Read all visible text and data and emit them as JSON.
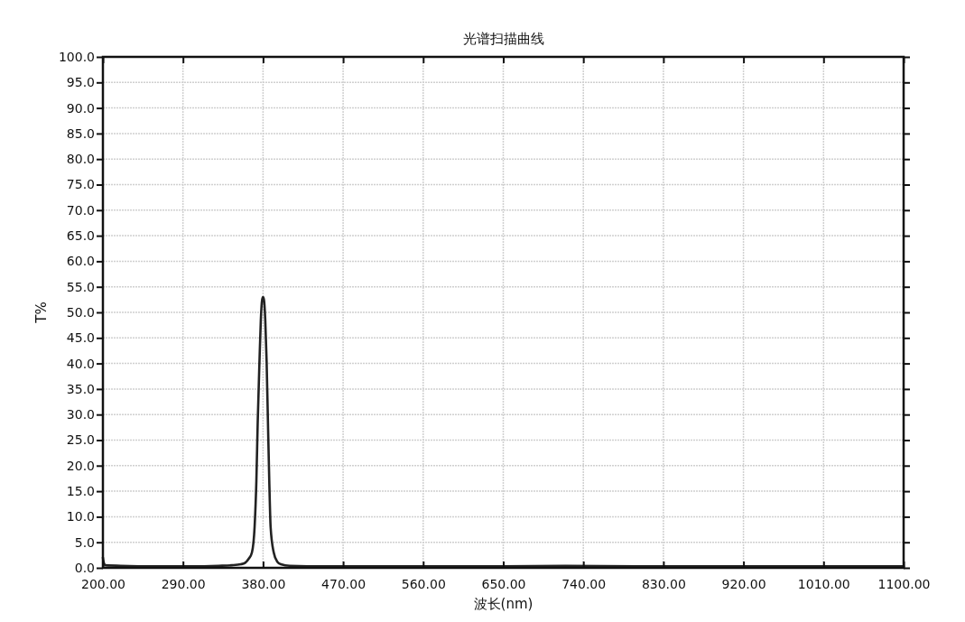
{
  "chart_data": {
    "type": "line",
    "title": "光谱扫描曲线",
    "xlabel": "波长(nm)",
    "ylabel": "T%",
    "xlim": [
      200,
      1100
    ],
    "ylim": [
      0,
      100
    ],
    "xticks": [
      {
        "value": 200,
        "label": "200.00"
      },
      {
        "value": 290,
        "label": "290.00"
      },
      {
        "value": 380,
        "label": "380.00"
      },
      {
        "value": 470,
        "label": "470.00"
      },
      {
        "value": 560,
        "label": "560.00"
      },
      {
        "value": 650,
        "label": "650.00"
      },
      {
        "value": 740,
        "label": "740.00"
      },
      {
        "value": 830,
        "label": "830.00"
      },
      {
        "value": 920,
        "label": "920.00"
      },
      {
        "value": 1010,
        "label": "1010.00"
      },
      {
        "value": 1100,
        "label": "1100.00"
      }
    ],
    "yticks": [
      {
        "value": 0,
        "label": "0.0"
      },
      {
        "value": 5,
        "label": "5.0"
      },
      {
        "value": 10,
        "label": "10.0"
      },
      {
        "value": 15,
        "label": "15.0"
      },
      {
        "value": 20,
        "label": "20.0"
      },
      {
        "value": 25,
        "label": "25.0"
      },
      {
        "value": 30,
        "label": "30.0"
      },
      {
        "value": 35,
        "label": "35.0"
      },
      {
        "value": 40,
        "label": "40.0"
      },
      {
        "value": 45,
        "label": "45.0"
      },
      {
        "value": 50,
        "label": "50.0"
      },
      {
        "value": 55,
        "label": "55.0"
      },
      {
        "value": 60,
        "label": "60.0"
      },
      {
        "value": 65,
        "label": "65.0"
      },
      {
        "value": 70,
        "label": "70.0"
      },
      {
        "value": 75,
        "label": "75.0"
      },
      {
        "value": 80,
        "label": "80.0"
      },
      {
        "value": 85,
        "label": "85.0"
      },
      {
        "value": 90,
        "label": "90.0"
      },
      {
        "value": 95,
        "label": "95.0"
      },
      {
        "value": 100,
        "label": "100.0"
      }
    ],
    "grid": true,
    "series": [
      {
        "color": "#222222",
        "x": [
          200,
          201,
          203,
          220,
          260,
          300,
          330,
          345,
          355,
          360,
          364,
          367.5,
          370.5,
          372.5,
          374,
          376,
          377.5,
          379,
          380,
          381,
          382.5,
          384,
          385.5,
          387,
          388.5,
          392,
          396,
          400,
          410,
          450,
          550,
          650,
          720,
          800,
          900,
          1000,
          1100
        ],
        "values": [
          2.0,
          1.0,
          0.5,
          0.4,
          0.3,
          0.3,
          0.4,
          0.5,
          0.7,
          1.0,
          1.8,
          3.0,
          8.0,
          17.0,
          28.5,
          40.5,
          48.5,
          52.5,
          53.0,
          52.5,
          48.5,
          40.5,
          28.5,
          17.0,
          8.0,
          3.0,
          1.2,
          0.7,
          0.4,
          0.3,
          0.3,
          0.3,
          0.4,
          0.3,
          0.3,
          0.3,
          0.3
        ]
      }
    ]
  }
}
